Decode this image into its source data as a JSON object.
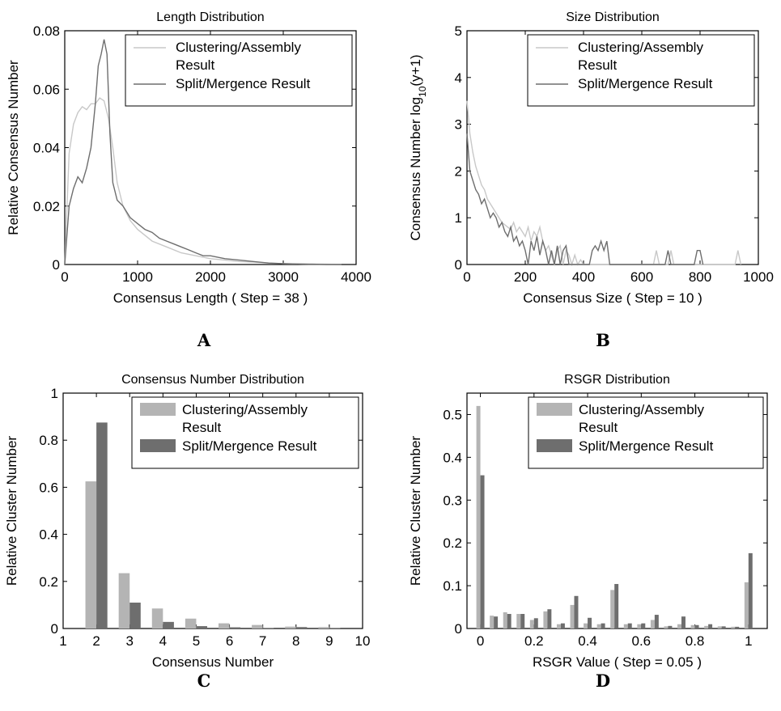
{
  "chart_data": [
    {
      "panel": "A",
      "type": "line",
      "title": "Length Distribution",
      "xlabel": "Consensus Length ( Step = 38 )",
      "ylabel": "Relative Consensus Number",
      "xlim": [
        0,
        4000
      ],
      "ylim": [
        0,
        0.08
      ],
      "xticks": [
        "0",
        "1000",
        "2000",
        "3000",
        "4000"
      ],
      "yticks": [
        "0",
        "0.02",
        "0.04",
        "0.06",
        "0.08"
      ],
      "legend_position": "top-right",
      "series": [
        {
          "name": "Clustering/Assembly Result",
          "color": "#c8c8c8",
          "x": [
            0,
            60,
            120,
            180,
            240,
            300,
            360,
            420,
            480,
            540,
            600,
            660,
            720,
            800,
            900,
            1000,
            1200,
            1400,
            1600,
            1800,
            2000,
            2200,
            2400,
            2600,
            2800,
            3000,
            3200,
            3400,
            3600,
            3800
          ],
          "y": [
            0,
            0.038,
            0.048,
            0.052,
            0.054,
            0.053,
            0.055,
            0.055,
            0.057,
            0.056,
            0.05,
            0.04,
            0.028,
            0.02,
            0.015,
            0.012,
            0.008,
            0.006,
            0.004,
            0.003,
            0.002,
            0.0015,
            0.001,
            0.0008,
            0.0005,
            0.0003,
            0.0002,
            0.0001,
            0.0001,
            0
          ]
        },
        {
          "name": "Split/Mergence Result",
          "color": "#6e6e6e",
          "x": [
            0,
            60,
            120,
            180,
            240,
            300,
            360,
            420,
            460,
            500,
            540,
            580,
            620,
            660,
            720,
            800,
            900,
            1000,
            1100,
            1200,
            1300,
            1400,
            1500,
            1600,
            1700,
            1800,
            1900,
            2000,
            2200,
            2400,
            2600,
            2800,
            3000,
            3200,
            3400,
            3600,
            3800
          ],
          "y": [
            0,
            0.02,
            0.026,
            0.03,
            0.028,
            0.033,
            0.04,
            0.055,
            0.068,
            0.072,
            0.077,
            0.072,
            0.045,
            0.028,
            0.022,
            0.02,
            0.016,
            0.014,
            0.012,
            0.011,
            0.009,
            0.008,
            0.007,
            0.006,
            0.005,
            0.004,
            0.003,
            0.003,
            0.002,
            0.0015,
            0.001,
            0.0005,
            0.0003,
            0.0002,
            0.0001,
            0,
            0
          ]
        }
      ]
    },
    {
      "panel": "B",
      "type": "line",
      "title": "Size Distribution",
      "xlabel": "Consensus Size ( Step = 10 )",
      "ylabel": "Consensus Number log",
      "ylabel_sub": "10",
      "ylabel_suffix": "(y+1)",
      "xlim": [
        0,
        1000
      ],
      "ylim": [
        0,
        5
      ],
      "xticks": [
        "0",
        "200",
        "400",
        "600",
        "800",
        "1000"
      ],
      "yticks": [
        "0",
        "1",
        "2",
        "3",
        "4",
        "5"
      ],
      "legend_position": "top-right",
      "series": [
        {
          "name": "Clustering/Assembly Result",
          "color": "#c8c8c8",
          "x": [
            0,
            10,
            20,
            30,
            40,
            50,
            60,
            70,
            80,
            90,
            100,
            110,
            120,
            130,
            140,
            150,
            160,
            170,
            180,
            190,
            200,
            210,
            220,
            230,
            240,
            250,
            260,
            270,
            280,
            290,
            300,
            310,
            320,
            330,
            340,
            350,
            360,
            370,
            380,
            390,
            400,
            640,
            650,
            660,
            690,
            700,
            710,
            920,
            930,
            940
          ],
          "y": [
            3.5,
            2.8,
            2.4,
            2.1,
            1.9,
            1.7,
            1.6,
            1.4,
            1.3,
            1.2,
            1.1,
            1.0,
            0.9,
            0.85,
            0.8,
            0.75,
            0.9,
            0.7,
            0.8,
            0.7,
            0.6,
            0.8,
            0.5,
            0.7,
            0.6,
            0.8,
            0.5,
            0.3,
            0.4,
            0.2,
            0,
            0.3,
            0.4,
            0,
            0.3,
            0.2,
            0,
            0.2,
            0,
            0.1,
            0,
            0,
            0.3,
            0,
            0,
            0.3,
            0,
            0,
            0.3,
            0
          ]
        },
        {
          "name": "Split/Mergence Result",
          "color": "#6e6e6e",
          "x": [
            0,
            10,
            20,
            30,
            40,
            50,
            60,
            70,
            80,
            90,
            100,
            110,
            120,
            130,
            140,
            150,
            160,
            170,
            180,
            190,
            200,
            210,
            220,
            230,
            240,
            250,
            260,
            270,
            280,
            290,
            300,
            310,
            320,
            330,
            340,
            350,
            420,
            430,
            440,
            450,
            460,
            470,
            480,
            490,
            680,
            690,
            700,
            710,
            780,
            790,
            800,
            810
          ],
          "y": [
            2.8,
            2.0,
            1.8,
            1.6,
            1.5,
            1.3,
            1.4,
            1.2,
            1.0,
            1.1,
            1.0,
            0.8,
            0.9,
            0.7,
            0.6,
            0.8,
            0.5,
            0.6,
            0.4,
            0.5,
            0.3,
            0,
            0.5,
            0.3,
            0.6,
            0.2,
            0.5,
            0.3,
            0,
            0.3,
            0,
            0.4,
            0,
            0.3,
            0.4,
            0,
            0,
            0.3,
            0.4,
            0.3,
            0.5,
            0.3,
            0.5,
            0,
            0,
            0.3,
            0,
            0,
            0,
            0.3,
            0.3,
            0
          ]
        }
      ]
    },
    {
      "panel": "C",
      "type": "bar",
      "title": "Consensus Number Distribution",
      "xlabel": "Consensus Number",
      "ylabel": "Relative Cluster Number",
      "xlim": [
        1,
        10
      ],
      "ylim": [
        0,
        1
      ],
      "xticks": [
        "1",
        "2",
        "3",
        "4",
        "5",
        "6",
        "7",
        "8",
        "9",
        "10"
      ],
      "yticks": [
        "0",
        "0.2",
        "0.4",
        "0.6",
        "0.8",
        "1"
      ],
      "legend_position": "top-right",
      "categories": [
        2,
        3,
        4,
        5,
        6,
        7,
        8,
        9
      ],
      "series": [
        {
          "name": "Clustering/Assembly Result",
          "color": "#b4b4b4",
          "values": [
            0.625,
            0.235,
            0.085,
            0.042,
            0.022,
            0.015,
            0.008,
            0.006
          ]
        },
        {
          "name": "Split/Mergence Result",
          "color": "#6e6e6e",
          "values": [
            0.875,
            0.11,
            0.028,
            0.01,
            0.005,
            0.002,
            0.006,
            0.002
          ]
        }
      ]
    },
    {
      "panel": "D",
      "type": "bar",
      "title": "RSGR Distribution",
      "xlabel": "RSGR Value ( Step = 0.05 )",
      "ylabel": "Relative Cluster Number",
      "xlim": [
        -0.05,
        1.07
      ],
      "ylim": [
        0,
        0.55
      ],
      "xticks": [
        "0",
        "0.2",
        "0.4",
        "0.6",
        "0.8",
        "1"
      ],
      "yticks": [
        "0",
        "0.1",
        "0.2",
        "0.3",
        "0.4",
        "0.5"
      ],
      "legend_position": "top-right",
      "categories": [
        0,
        0.05,
        0.1,
        0.15,
        0.2,
        0.25,
        0.3,
        0.35,
        0.4,
        0.45,
        0.5,
        0.55,
        0.6,
        0.65,
        0.7,
        0.75,
        0.8,
        0.85,
        0.9,
        0.95,
        1.0
      ],
      "series": [
        {
          "name": "Clustering/Assembly Result",
          "color": "#b4b4b4",
          "values": [
            0.52,
            0.03,
            0.038,
            0.034,
            0.02,
            0.04,
            0.01,
            0.055,
            0.012,
            0.01,
            0.09,
            0.01,
            0.01,
            0.02,
            0.005,
            0.01,
            0.008,
            0.006,
            0.005,
            0.004,
            0.108
          ]
        },
        {
          "name": "Split/Mergence Result",
          "color": "#6e6e6e",
          "values": [
            0.358,
            0.028,
            0.034,
            0.034,
            0.024,
            0.045,
            0.012,
            0.076,
            0.025,
            0.012,
            0.104,
            0.012,
            0.012,
            0.032,
            0.006,
            0.028,
            0.008,
            0.01,
            0.005,
            0.004,
            0.176
          ]
        }
      ]
    }
  ]
}
